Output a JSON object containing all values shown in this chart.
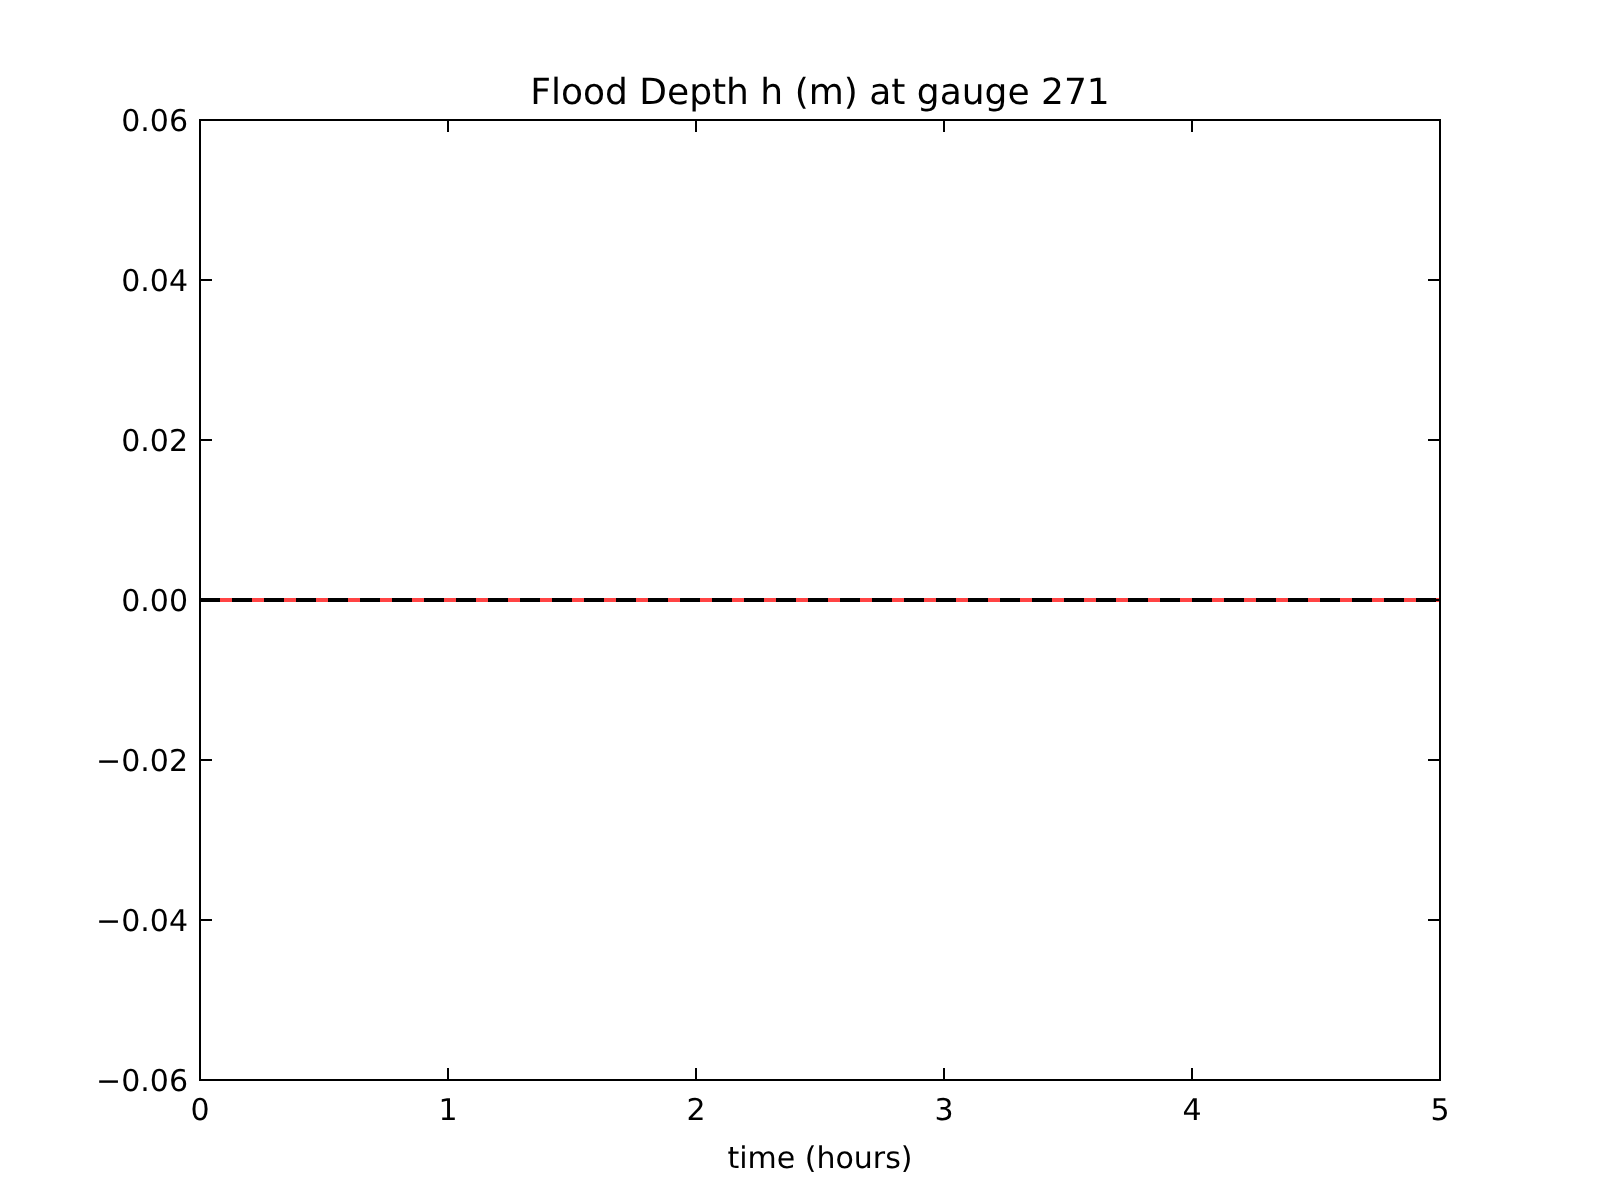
{
  "chart_data": {
    "type": "line",
    "title": "Flood Depth h (m) at gauge 271",
    "xlabel": "time (hours)",
    "x": [
      0,
      5
    ],
    "series": [
      {
        "color": "#ff4444",
        "values": [
          0,
          0
        ],
        "line_style": "solid"
      },
      {
        "color": "#000000",
        "values": [
          0,
          0
        ],
        "line_style": "dashed"
      }
    ],
    "xlim": [
      0,
      5
    ],
    "xticks": [
      0,
      1,
      2,
      3,
      4,
      5
    ],
    "ylim": [
      -0.06,
      0.06
    ],
    "yticks": [
      {
        "value": -0.06,
        "label": "−0.06"
      },
      {
        "value": -0.04,
        "label": "−0.04"
      },
      {
        "value": -0.02,
        "label": "−0.02"
      },
      "0.00",
      "0.02",
      "0.04",
      "0.06"
    ],
    "grid": false
  }
}
